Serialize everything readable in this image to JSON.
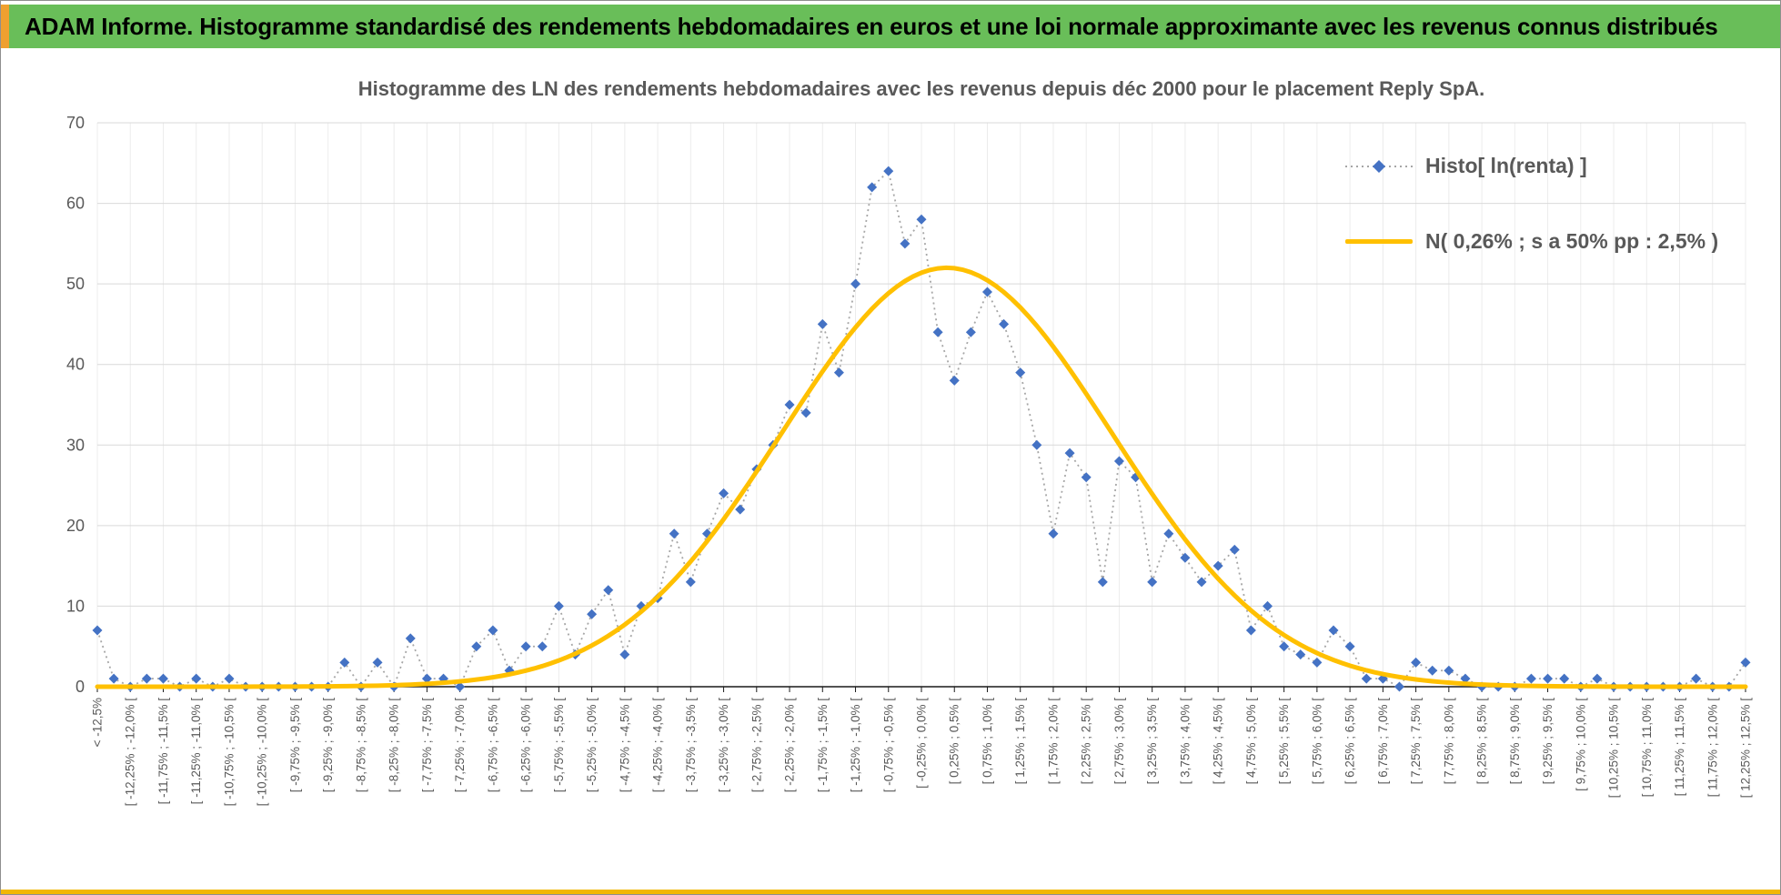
{
  "header": {
    "title": "ADAM Informe. Histogramme standardisé des rendements hebdomadaires en euros et une loi normale approximante avec les revenus connus distribués"
  },
  "chart": {
    "title": "Histogramme des LN des rendements hebdomadaires avec les revenus depuis déc 2000 pour le placement Reply SpA.",
    "legend": {
      "histogram": "Histo[ ln(renta) ]",
      "normal": "N( 0,26% ; s a 50% pp : 2,5% )"
    }
  },
  "chart_data": {
    "type": "line",
    "title": "Histogramme des LN des rendements hebdomadaires avec les revenus depuis déc 2000 pour le placement Reply SpA.",
    "series_names": [
      "Histo[ ln(renta) ]",
      "N( 0,26% ; s a 50% pp : 2,5% )"
    ],
    "legend_position": "top-right",
    "grid": true,
    "y_axis": {
      "min": 0,
      "max": 70,
      "step": 10
    },
    "x_tick_interval": 2,
    "bin_width_pct": 0.25,
    "axis_min_pct": -12.5,
    "x_tick_labels": [
      "< -12,5%",
      "[ -12,25% ; -12,0% [",
      "[ -11,75% ; -11,5% [",
      "[ -11,25% ; -11,0% [",
      "[ -10,75% ; -10,5% [",
      "[ -10,25% ; -10,0% [",
      "[ -9,75% ; -9,5% [",
      "[ -9,25% ; -9,0% [",
      "[ -8,75% ; -8,5% [",
      "[ -8,25% ; -8,0% [",
      "[ -7,75% ; -7,5% [",
      "[ -7,25% ; -7,0% [",
      "[ -6,75% ; -6,5% [",
      "[ -6,25% ; -6,0% [",
      "[ -5,75% ; -5,5% [",
      "[ -5,25% ; -5,0% [",
      "[ -4,75% ; -4,5% [",
      "[ -4,25% ; -4,0% [",
      "[ -3,75% ; -3,5% [",
      "[ -3,25% ; -3,0% [",
      "[ -2,75% ; -2,5% [",
      "[ -2,25% ; -2,0% [",
      "[ -1,75% ; -1,5% [",
      "[ -1,25% ; -1,0% [",
      "[ -0,75% ; -0,5% [",
      "[ -0,25% ; 0,0% [",
      "[ 0,25% ; 0,5% [",
      "[ 0,75% ; 1,0% [",
      "[ 1,25% ; 1,5% [",
      "[ 1,75% ; 2,0% [",
      "[ 2,25% ; 2,5% [",
      "[ 2,75% ; 3,0% [",
      "[ 3,25% ; 3,5% [",
      "[ 3,75% ; 4,0% [",
      "[ 4,25% ; 4,5% [",
      "[ 4,75% ; 5,0% [",
      "[ 5,25% ; 5,5% [",
      "[ 5,75% ; 6,0% [",
      "[ 6,25% ; 6,5% [",
      "[ 6,75% ; 7,0% [",
      "[ 7,25% ; 7,5% [",
      "[ 7,75% ; 8,0% [",
      "[ 8,25% ; 8,5% [",
      "[ 8,75% ; 9,0% [",
      "[ 9,25% ; 9,5% [",
      "[ 9,75% ; 10,0% [",
      "[ 10,25% ; 10,5% [",
      "[ 10,75% ; 11,0% [",
      "[ 11,25% ; 11,5% [",
      "[ 11,75% ; 12,0% [",
      "[ 12,25% ; 12,5% ["
    ],
    "values": [
      7,
      1,
      0,
      1,
      1,
      0,
      1,
      0,
      1,
      0,
      0,
      0,
      0,
      0,
      0,
      3,
      0,
      3,
      0,
      6,
      1,
      1,
      0,
      5,
      7,
      2,
      5,
      5,
      10,
      4,
      9,
      12,
      4,
      10,
      11,
      19,
      13,
      19,
      24,
      22,
      27,
      30,
      35,
      34,
      45,
      39,
      50,
      62,
      64,
      55,
      58,
      44,
      38,
      44,
      49,
      45,
      39,
      30,
      19,
      29,
      26,
      13,
      28,
      26,
      13,
      19,
      16,
      13,
      15,
      17,
      7,
      10,
      5,
      4,
      3,
      7,
      5,
      1,
      1,
      0,
      3,
      2,
      2,
      1,
      0,
      0,
      0,
      1,
      1,
      1,
      0,
      1,
      0,
      0,
      0,
      0,
      0,
      1,
      0,
      0,
      3
    ],
    "normal": {
      "mean_pct": 0.26,
      "sd_pct": 2.5,
      "peak": 52,
      "mean_label": "0,26%",
      "sd_label": "2,5%"
    },
    "colors": {
      "histogram": "#4472C4",
      "connector": "#A6A6A6",
      "normal": "#FFC000",
      "grid": "#D9D9D9",
      "axis": "#1a1a1a",
      "header_green": "#69BE59",
      "accent_orange": "#EFA02F",
      "bottom_gold": "#F2B705"
    }
  }
}
